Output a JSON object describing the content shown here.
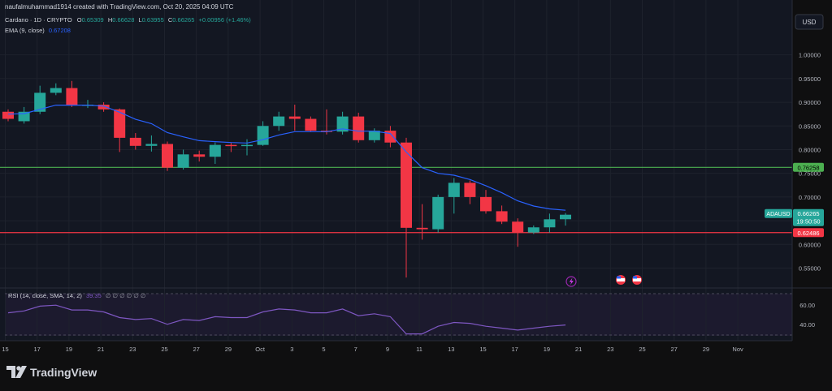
{
  "header": {
    "author_line": "naufalmuhammad1914 created with TradingView.com, Oct 20, 2025 04:09 UTC"
  },
  "legend": {
    "symbol": "Cardano · 1D · CRYPTO",
    "open_label": "O",
    "open_value": "0.65309",
    "high_label": "H",
    "high_value": "0.66628",
    "low_label": "L",
    "low_value": "0.63955",
    "close_label": "C",
    "close_value": "0.66265",
    "change": "+0.00956 (+1.46%)",
    "ema_label": "EMA (9, close)",
    "ema_value": "0.67208"
  },
  "currency_button": "USD",
  "price_badges": {
    "symbol": "ADAUSD",
    "last_price": "0.66265",
    "countdown": "19:50:50",
    "resistance": "0.76258",
    "support": "0.62486"
  },
  "rsi_legend": {
    "label": "RSI (14, close, SMA, 14, 2)",
    "value": "39.35",
    "placeholders": "∅ ∅ ∅ ∅ ∅ ∅"
  },
  "brand": "TradingView",
  "colors": {
    "bull": "#26a69a",
    "bear": "#f23645",
    "ema": "#2962ff",
    "rsi": "#7e57c2",
    "resistance": "#4caf50",
    "support": "#f23645",
    "background": "#0f0f10"
  },
  "chart_data": [
    {
      "type": "candlestick",
      "title": "Cardano · 1D · CRYPTO",
      "x_tick_labels": [
        "15",
        "17",
        "19",
        "21",
        "23",
        "25",
        "27",
        "29",
        "Oct",
        "3",
        "5",
        "7",
        "9",
        "11",
        "13",
        "15",
        "17",
        "19",
        "21",
        "23",
        "25",
        "27",
        "29",
        "Nov"
      ],
      "y_ticks": [
        0.55,
        0.6,
        0.65,
        0.7,
        0.75,
        0.8,
        0.85,
        0.9,
        0.95,
        1.0
      ],
      "ylim": [
        0.52,
        1.02
      ],
      "grid": true,
      "candles": [
        {
          "date": "Sep 15",
          "open": 0.88,
          "high": 0.885,
          "low": 0.86,
          "close": 0.865
        },
        {
          "date": "Sep 16",
          "open": 0.86,
          "high": 0.89,
          "low": 0.855,
          "close": 0.88
        },
        {
          "date": "Sep 17",
          "open": 0.88,
          "high": 0.935,
          "low": 0.875,
          "close": 0.92
        },
        {
          "date": "Sep 18",
          "open": 0.92,
          "high": 0.94,
          "low": 0.915,
          "close": 0.93
        },
        {
          "date": "Sep 19",
          "open": 0.93,
          "high": 0.945,
          "low": 0.89,
          "close": 0.893
        },
        {
          "date": "Sep 20",
          "open": 0.893,
          "high": 0.905,
          "low": 0.888,
          "close": 0.895
        },
        {
          "date": "Sep 21",
          "open": 0.895,
          "high": 0.9,
          "low": 0.88,
          "close": 0.885
        },
        {
          "date": "Sep 22",
          "open": 0.885,
          "high": 0.887,
          "low": 0.795,
          "close": 0.825
        },
        {
          "date": "Sep 23",
          "open": 0.825,
          "high": 0.835,
          "low": 0.8,
          "close": 0.808
        },
        {
          "date": "Sep 24",
          "open": 0.808,
          "high": 0.83,
          "low": 0.796,
          "close": 0.812
        },
        {
          "date": "Sep 25",
          "open": 0.812,
          "high": 0.817,
          "low": 0.755,
          "close": 0.762
        },
        {
          "date": "Sep 26",
          "open": 0.762,
          "high": 0.8,
          "low": 0.758,
          "close": 0.79
        },
        {
          "date": "Sep 27",
          "open": 0.79,
          "high": 0.798,
          "low": 0.775,
          "close": 0.785
        },
        {
          "date": "Sep 28",
          "open": 0.785,
          "high": 0.815,
          "low": 0.77,
          "close": 0.81
        },
        {
          "date": "Sep 29",
          "open": 0.81,
          "high": 0.815,
          "low": 0.795,
          "close": 0.808
        },
        {
          "date": "Sep 30",
          "open": 0.808,
          "high": 0.822,
          "low": 0.788,
          "close": 0.81
        },
        {
          "date": "Oct 1",
          "open": 0.81,
          "high": 0.86,
          "low": 0.808,
          "close": 0.85
        },
        {
          "date": "Oct 2",
          "open": 0.85,
          "high": 0.88,
          "low": 0.84,
          "close": 0.87
        },
        {
          "date": "Oct 3",
          "open": 0.87,
          "high": 0.895,
          "low": 0.84,
          "close": 0.865
        },
        {
          "date": "Oct 4",
          "open": 0.865,
          "high": 0.87,
          "low": 0.838,
          "close": 0.84
        },
        {
          "date": "Oct 5",
          "open": 0.84,
          "high": 0.885,
          "low": 0.832,
          "close": 0.838
        },
        {
          "date": "Oct 6",
          "open": 0.838,
          "high": 0.88,
          "low": 0.832,
          "close": 0.87
        },
        {
          "date": "Oct 7",
          "open": 0.87,
          "high": 0.878,
          "low": 0.815,
          "close": 0.82
        },
        {
          "date": "Oct 8",
          "open": 0.82,
          "high": 0.845,
          "low": 0.815,
          "close": 0.84
        },
        {
          "date": "Oct 9",
          "open": 0.84,
          "high": 0.85,
          "low": 0.805,
          "close": 0.815
        },
        {
          "date": "Oct 10",
          "open": 0.815,
          "high": 0.825,
          "low": 0.53,
          "close": 0.635
        },
        {
          "date": "Oct 11",
          "open": 0.635,
          "high": 0.685,
          "low": 0.61,
          "close": 0.632
        },
        {
          "date": "Oct 12",
          "open": 0.632,
          "high": 0.705,
          "low": 0.625,
          "close": 0.7
        },
        {
          "date": "Oct 13",
          "open": 0.7,
          "high": 0.74,
          "low": 0.665,
          "close": 0.73
        },
        {
          "date": "Oct 14",
          "open": 0.73,
          "high": 0.735,
          "low": 0.685,
          "close": 0.7
        },
        {
          "date": "Oct 15",
          "open": 0.7,
          "high": 0.715,
          "low": 0.665,
          "close": 0.67
        },
        {
          "date": "Oct 16",
          "open": 0.67,
          "high": 0.682,
          "low": 0.643,
          "close": 0.648
        },
        {
          "date": "Oct 17",
          "open": 0.648,
          "high": 0.655,
          "low": 0.595,
          "close": 0.625
        },
        {
          "date": "Oct 18",
          "open": 0.625,
          "high": 0.64,
          "low": 0.622,
          "close": 0.636
        },
        {
          "date": "Oct 19",
          "open": 0.636,
          "high": 0.665,
          "low": 0.625,
          "close": 0.653
        },
        {
          "date": "Oct 20",
          "open": 0.65309,
          "high": 0.66628,
          "low": 0.63955,
          "close": 0.66265
        }
      ],
      "ema": [
        0.875,
        0.876,
        0.885,
        0.894,
        0.894,
        0.894,
        0.892,
        0.879,
        0.864,
        0.855,
        0.836,
        0.827,
        0.819,
        0.817,
        0.815,
        0.814,
        0.821,
        0.831,
        0.838,
        0.838,
        0.838,
        0.844,
        0.839,
        0.839,
        0.834,
        0.795,
        0.762,
        0.75,
        0.746,
        0.737,
        0.724,
        0.709,
        0.692,
        0.681,
        0.675,
        0.67208
      ],
      "horizontal_lines": [
        {
          "value": 0.76258,
          "color": "#4caf50"
        },
        {
          "value": 0.62486,
          "color": "#f23645"
        }
      ]
    },
    {
      "type": "line",
      "title": "RSI (14, close, SMA, 14, 2)",
      "y_ticks": [
        40,
        60
      ],
      "ylim": [
        28,
        72
      ],
      "rsi": [
        52,
        54,
        59,
        60,
        55,
        55,
        53,
        47,
        45,
        46,
        40,
        45,
        44,
        48,
        47,
        47,
        53,
        56,
        55,
        52,
        52,
        56,
        49,
        51,
        48,
        30,
        30,
        38,
        42,
        41,
        38,
        36,
        34,
        36,
        38,
        39.35
      ]
    }
  ]
}
